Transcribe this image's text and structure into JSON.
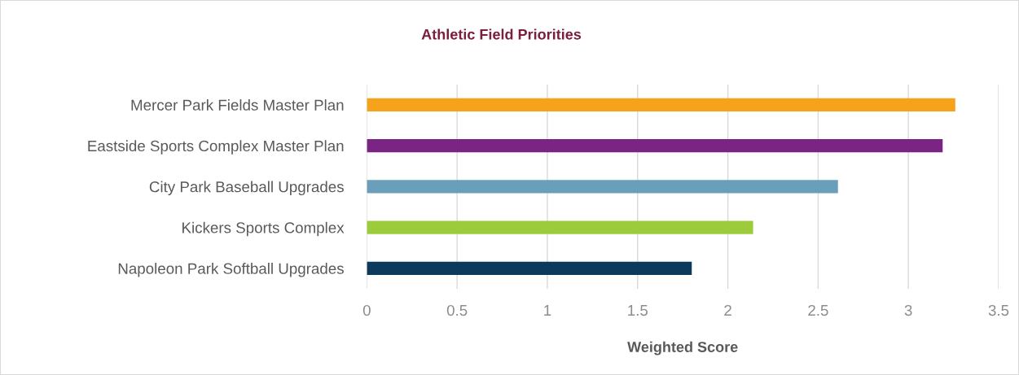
{
  "chart_data": {
    "type": "bar",
    "orientation": "horizontal",
    "title": "Athletic Field Priorities",
    "xlabel": "Weighted Score",
    "categories": [
      "Mercer Park Fields Master Plan",
      "Eastside Sports Complex Master Plan",
      "City Park Baseball Upgrades",
      "Kickers Sports Complex",
      "Napoleon Park Softball Upgrades"
    ],
    "values": [
      3.26,
      3.19,
      2.61,
      2.14,
      1.8
    ],
    "colors": [
      "#f7a21b",
      "#7b2484",
      "#6a9fbc",
      "#9ccb3b",
      "#0b3a5c"
    ],
    "xlim": [
      0,
      3.5
    ],
    "xticks": [
      0,
      0.5,
      1,
      1.5,
      2,
      2.5,
      3,
      3.5
    ],
    "grid": "x"
  }
}
